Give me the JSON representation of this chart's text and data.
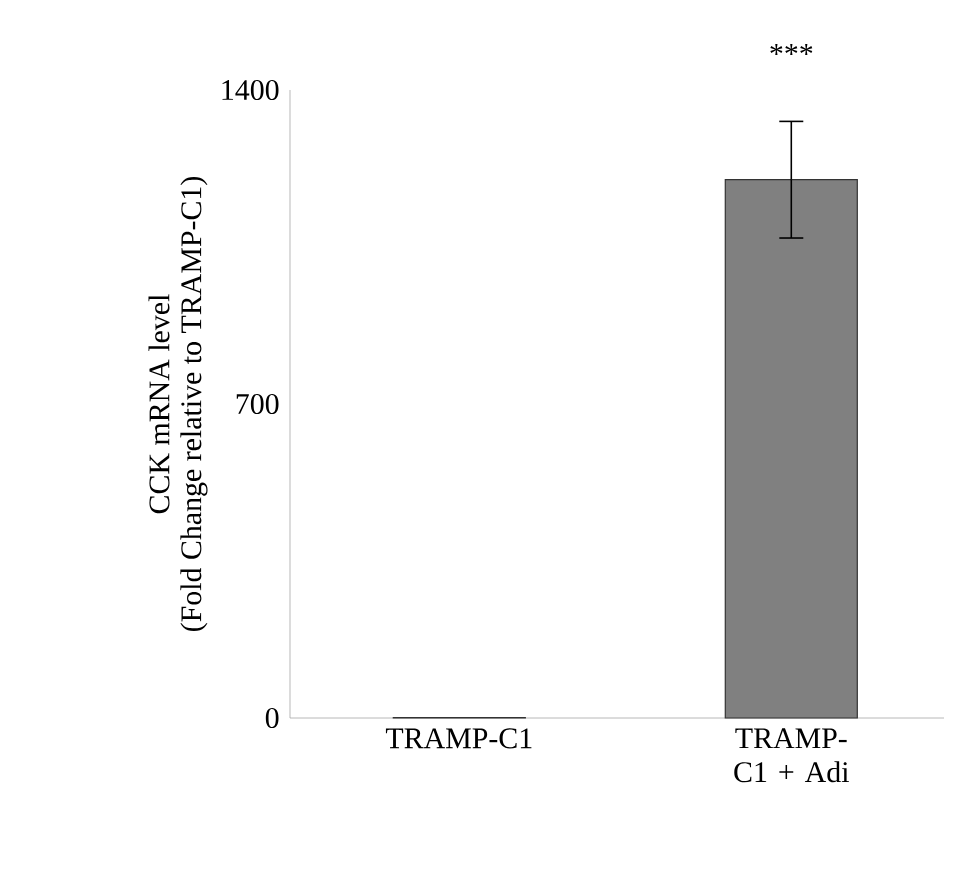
{
  "chart_data": {
    "type": "bar",
    "ylabel": "CCK mRNA level (Fold Change relative to TRAMP-C1)",
    "categories": [
      "TRAMP-C1",
      "TRAMP-C1 + Adi"
    ],
    "values": [
      1,
      1200
    ],
    "errors": [
      null,
      130
    ],
    "color": "#808080",
    "ylim": [
      0,
      1400
    ],
    "yticks": [
      0,
      700,
      1400
    ],
    "annotations": [
      "***"
    ],
    "grid": false
  }
}
